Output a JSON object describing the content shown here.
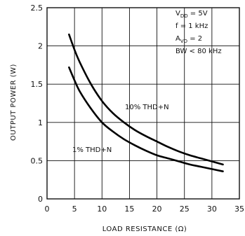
{
  "chart_data": {
    "type": "line",
    "title": "",
    "xlabel": "LOAD RESISTANCE (Ω)",
    "ylabel": "OUTPUT POWER (W)",
    "xlim": [
      0,
      35
    ],
    "ylim": [
      0,
      2.5
    ],
    "x_ticks": [
      "0",
      "5",
      "10",
      "15",
      "20",
      "25",
      "30",
      "35"
    ],
    "y_ticks": [
      "0",
      "0.5",
      "1",
      "1.5",
      "2",
      "2.5"
    ],
    "grid": true,
    "conditions": [
      "VDD = 5V",
      "f = 1 kHz",
      "AVD = 2",
      "BW < 80 kHz"
    ],
    "series": [
      {
        "name": "10% THD+N",
        "x": [
          4,
          5,
          6,
          8,
          10,
          12,
          14,
          16,
          18,
          20,
          22,
          24,
          26,
          28,
          30,
          32
        ],
        "y": [
          2.15,
          1.95,
          1.78,
          1.5,
          1.28,
          1.12,
          1.0,
          0.9,
          0.82,
          0.75,
          0.68,
          0.62,
          0.57,
          0.53,
          0.49,
          0.45
        ]
      },
      {
        "name": "1% THD+N",
        "x": [
          4,
          5,
          6,
          8,
          10,
          12,
          14,
          16,
          18,
          20,
          22,
          24,
          26,
          28,
          30,
          32
        ],
        "y": [
          1.72,
          1.55,
          1.4,
          1.18,
          1.0,
          0.88,
          0.78,
          0.7,
          0.63,
          0.57,
          0.53,
          0.49,
          0.45,
          0.42,
          0.39,
          0.36
        ]
      }
    ]
  }
}
